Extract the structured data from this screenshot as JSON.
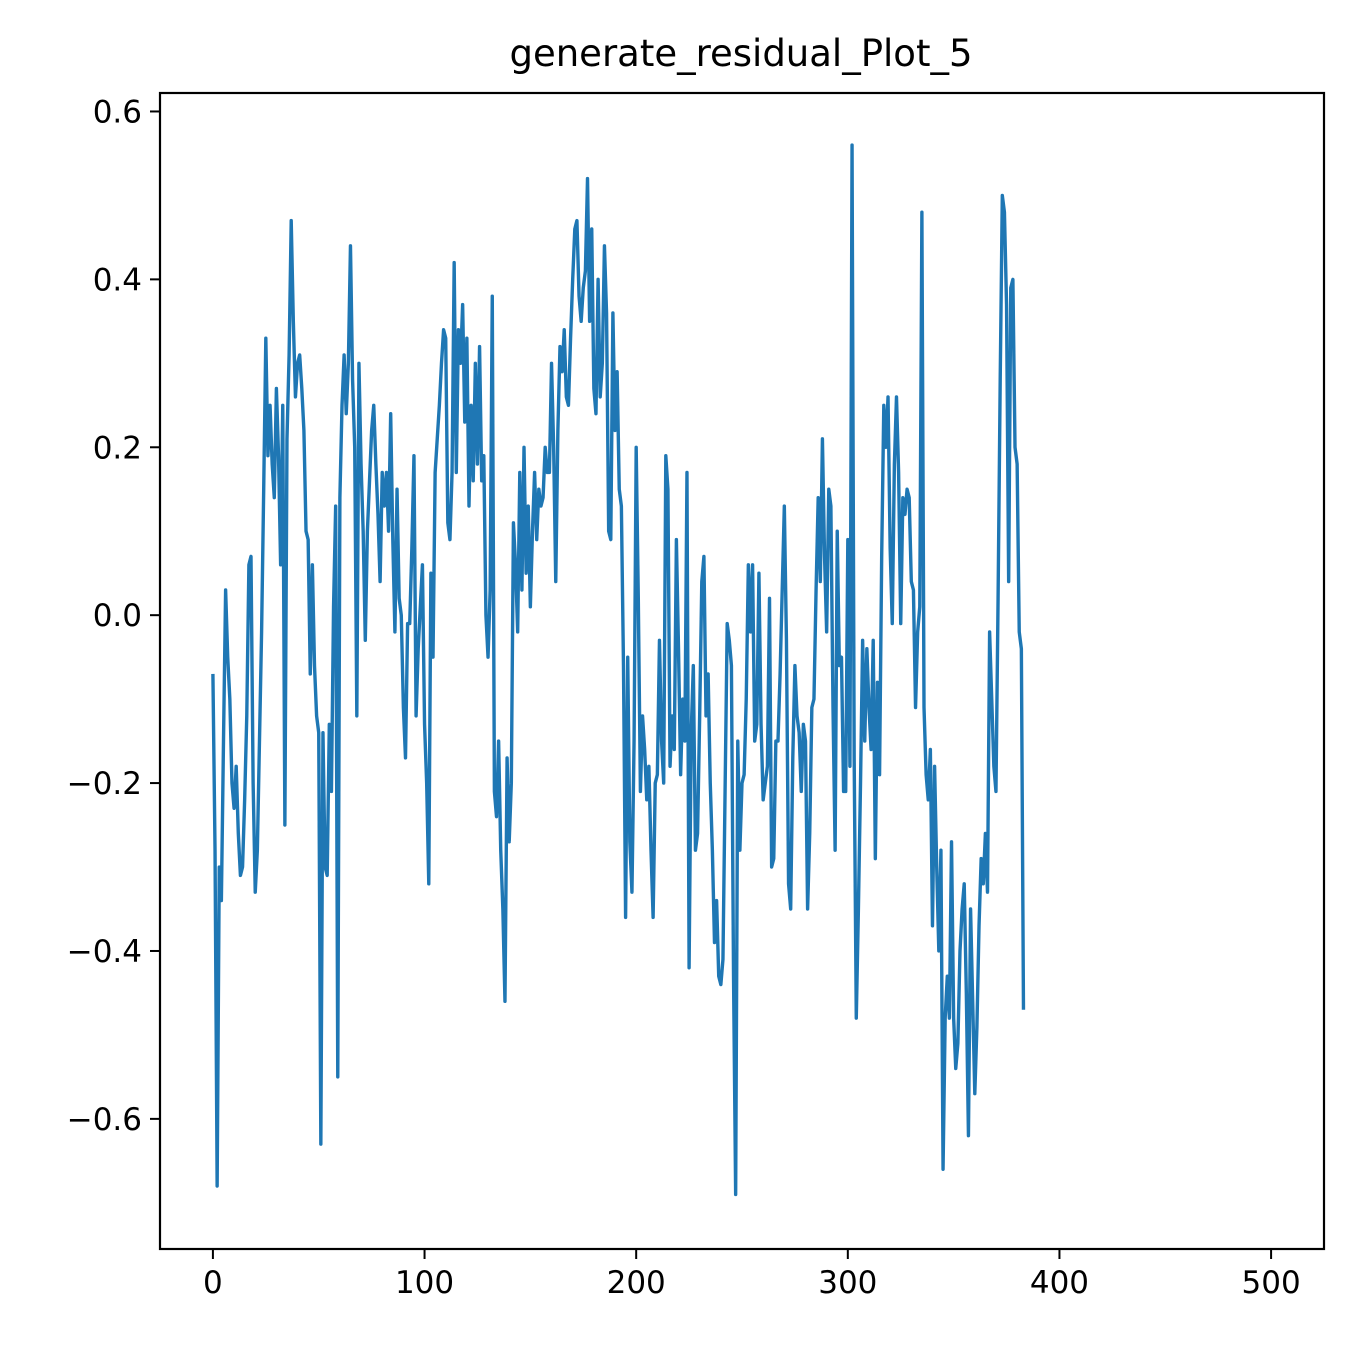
{
  "chart_data": {
    "type": "line",
    "title": "generate_residual_Plot_5",
    "xlabel": "",
    "ylabel": "",
    "xlim": [
      -25,
      525
    ],
    "ylim": [
      -0.755,
      0.622
    ],
    "xticks": [
      0,
      100,
      200,
      300,
      400,
      500
    ],
    "yticks": [
      -0.6,
      -0.4,
      -0.2,
      0.0,
      0.2,
      0.4,
      0.6
    ],
    "ytick_labels": [
      "−0.6",
      "−0.4",
      "−0.2",
      "0.0",
      "0.2",
      "0.4",
      "0.6"
    ],
    "grid": false,
    "legend": "none",
    "series": [
      {
        "color": "#1f77b4",
        "x_step": 1,
        "x_start": 0,
        "values": [
          -0.07,
          -0.28,
          -0.68,
          -0.3,
          -0.34,
          -0.15,
          0.03,
          -0.05,
          -0.1,
          -0.2,
          -0.23,
          -0.18,
          -0.26,
          -0.31,
          -0.3,
          -0.22,
          -0.12,
          0.06,
          0.07,
          -0.2,
          -0.33,
          -0.28,
          -0.15,
          -0.02,
          0.15,
          0.33,
          0.19,
          0.25,
          0.18,
          0.14,
          0.27,
          0.19,
          0.06,
          0.25,
          -0.25,
          0.21,
          0.31,
          0.47,
          0.35,
          0.26,
          0.3,
          0.31,
          0.27,
          0.22,
          0.1,
          0.09,
          -0.07,
          0.06,
          -0.06,
          -0.12,
          -0.14,
          -0.63,
          -0.14,
          -0.3,
          -0.31,
          -0.13,
          -0.21,
          0.01,
          0.13,
          -0.55,
          0.14,
          0.25,
          0.31,
          0.24,
          0.3,
          0.44,
          0.28,
          0.2,
          -0.12,
          0.3,
          0.18,
          0.1,
          -0.03,
          0.1,
          0.16,
          0.22,
          0.25,
          0.18,
          0.12,
          0.04,
          0.17,
          0.13,
          0.17,
          0.1,
          0.24,
          0.09,
          -0.02,
          0.15,
          0.02,
          0.0,
          -0.11,
          -0.17,
          -0.01,
          -0.01,
          0.08,
          0.19,
          -0.12,
          -0.04,
          0.01,
          0.06,
          -0.13,
          -0.2,
          -0.32,
          0.05,
          -0.05,
          0.17,
          0.21,
          0.25,
          0.3,
          0.34,
          0.33,
          0.11,
          0.09,
          0.17,
          0.42,
          0.17,
          0.34,
          0.3,
          0.37,
          0.23,
          0.33,
          0.13,
          0.25,
          0.16,
          0.3,
          0.18,
          0.32,
          0.16,
          0.19,
          0.0,
          -0.05,
          0.03,
          0.38,
          -0.21,
          -0.24,
          -0.15,
          -0.28,
          -0.35,
          -0.46,
          -0.17,
          -0.27,
          -0.2,
          0.11,
          0.06,
          -0.02,
          0.17,
          0.03,
          0.2,
          0.05,
          0.13,
          0.01,
          0.1,
          0.17,
          0.09,
          0.15,
          0.13,
          0.14,
          0.2,
          0.17,
          0.17,
          0.3,
          0.2,
          0.04,
          0.22,
          0.32,
          0.29,
          0.34,
          0.26,
          0.25,
          0.33,
          0.4,
          0.46,
          0.47,
          0.38,
          0.35,
          0.39,
          0.41,
          0.52,
          0.35,
          0.46,
          0.27,
          0.24,
          0.4,
          0.26,
          0.3,
          0.44,
          0.36,
          0.1,
          0.09,
          0.36,
          0.22,
          0.29,
          0.15,
          0.13,
          -0.06,
          -0.36,
          -0.05,
          -0.27,
          -0.33,
          -0.15,
          0.2,
          0.02,
          -0.21,
          -0.12,
          -0.16,
          -0.22,
          -0.18,
          -0.28,
          -0.36,
          -0.2,
          -0.19,
          -0.03,
          -0.15,
          -0.2,
          0.19,
          0.15,
          -0.18,
          -0.12,
          -0.16,
          0.09,
          -0.04,
          -0.19,
          -0.1,
          -0.15,
          0.17,
          -0.42,
          -0.14,
          -0.06,
          -0.28,
          -0.26,
          -0.12,
          0.04,
          0.07,
          -0.12,
          -0.07,
          -0.2,
          -0.28,
          -0.39,
          -0.34,
          -0.43,
          -0.44,
          -0.41,
          -0.21,
          -0.01,
          -0.03,
          -0.06,
          -0.43,
          -0.69,
          -0.15,
          -0.28,
          -0.2,
          -0.19,
          -0.1,
          0.06,
          -0.02,
          0.06,
          -0.15,
          -0.13,
          0.05,
          -0.13,
          -0.22,
          -0.2,
          -0.18,
          0.02,
          -0.3,
          -0.29,
          -0.15,
          -0.15,
          -0.07,
          0.03,
          0.13,
          -0.03,
          -0.32,
          -0.35,
          -0.17,
          -0.06,
          -0.12,
          -0.14,
          -0.21,
          -0.13,
          -0.15,
          -0.35,
          -0.26,
          -0.11,
          -0.1,
          0.03,
          0.14,
          0.04,
          0.21,
          0.07,
          -0.02,
          0.15,
          0.13,
          -0.11,
          -0.28,
          0.1,
          -0.06,
          -0.05,
          -0.21,
          -0.21,
          0.09,
          -0.18,
          0.56,
          -0.17,
          -0.48,
          -0.35,
          -0.2,
          -0.03,
          -0.15,
          -0.04,
          -0.11,
          -0.16,
          -0.03,
          -0.29,
          -0.08,
          -0.19,
          0.07,
          0.25,
          0.2,
          0.26,
          0.08,
          -0.01,
          0.18,
          0.26,
          0.17,
          -0.01,
          0.14,
          0.12,
          0.15,
          0.14,
          0.04,
          0.03,
          -0.11,
          -0.02,
          0.01,
          0.48,
          -0.11,
          -0.19,
          -0.22,
          -0.16,
          -0.37,
          -0.18,
          -0.3,
          -0.4,
          -0.28,
          -0.66,
          -0.48,
          -0.43,
          -0.48,
          -0.27,
          -0.48,
          -0.54,
          -0.51,
          -0.4,
          -0.35,
          -0.32,
          -0.45,
          -0.62,
          -0.35,
          -0.46,
          -0.57,
          -0.49,
          -0.37,
          -0.29,
          -0.32,
          -0.26,
          -0.33,
          -0.02,
          -0.1,
          -0.18,
          -0.21,
          0.02,
          0.28,
          0.5,
          0.48,
          0.37,
          0.04,
          0.39,
          0.4,
          0.2,
          0.18,
          -0.02,
          -0.04,
          -0.47
        ]
      }
    ]
  }
}
